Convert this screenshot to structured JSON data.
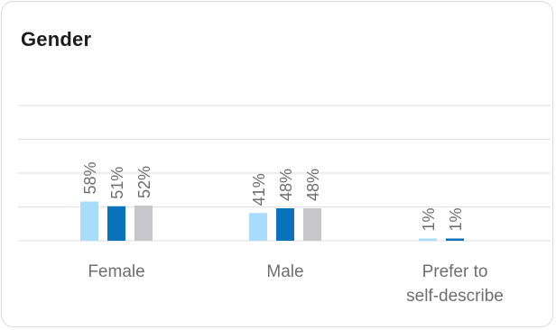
{
  "card": {
    "title": "Gender"
  },
  "colors": {
    "series": [
      "#a8dcfa",
      "#0a72bb",
      "#c7c6ca"
    ],
    "gridline": "#e3e3e3",
    "label": "#6e6e73",
    "title": "#1d1d1f"
  },
  "chart_data": {
    "type": "bar",
    "title": "Gender",
    "categories": [
      [
        "Female"
      ],
      [
        "Male"
      ],
      [
        "Prefer to",
        "self-describe"
      ]
    ],
    "series": [
      {
        "values": [
          58,
          41,
          1
        ],
        "labels": [
          "58%",
          "41%",
          "1%"
        ]
      },
      {
        "values": [
          51,
          48,
          1
        ],
        "labels": [
          "51%",
          "48%",
          "1%"
        ]
      },
      {
        "values": [
          52,
          48,
          null
        ],
        "labels": [
          "52%",
          "48%",
          ""
        ]
      }
    ],
    "ylim": [
      0,
      200
    ],
    "gridline_values": [
      0,
      50,
      100,
      150,
      200
    ],
    "grid": true,
    "legend": "none",
    "value_label_orientation": "vertical"
  }
}
